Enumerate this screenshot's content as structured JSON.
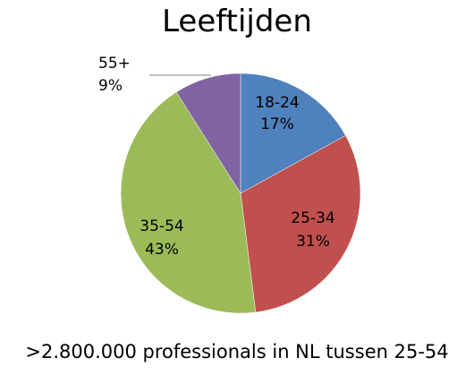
{
  "chart_data": {
    "type": "pie",
    "title": "Leeftijden",
    "categories": [
      "18-24",
      "25-34",
      "35-54",
      "55+"
    ],
    "values": [
      17,
      31,
      43,
      9
    ],
    "value_labels": [
      "17%",
      "31%",
      "43%",
      "9%"
    ],
    "colors": [
      "#4F81BD",
      "#C0504D",
      "#9BBB59",
      "#8064A2"
    ],
    "legend": "none",
    "label_placement": "inside slices; 55+ outside with leader line"
  },
  "footer": {
    "text": ">2.800.000 professionals in NL tussen 25-54"
  }
}
